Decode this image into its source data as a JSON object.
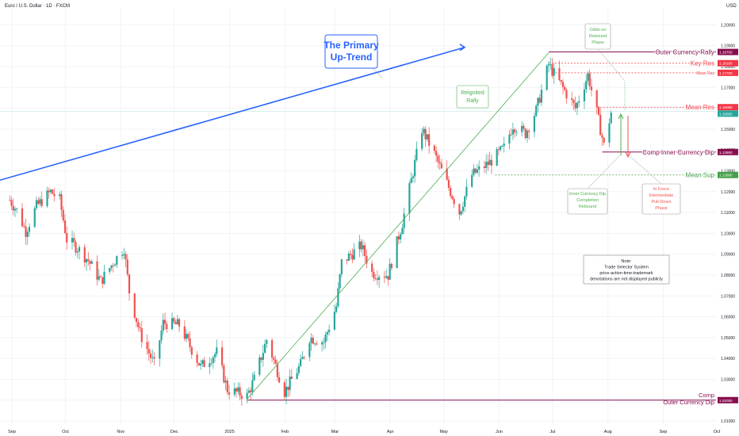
{
  "header": {
    "symbol_title": "Euro / U.S. Dollar · 1D · FXCM",
    "currency": "USD"
  },
  "colors": {
    "up": "#26a69a",
    "down": "#ef5350",
    "trend_blue": "#2962ff",
    "purple": "#880e4f",
    "red_level": "#f23645",
    "green_level": "#43a047",
    "channel_green": "#4caf50"
  },
  "chart_data": {
    "type": "candlestick",
    "instrument": "Euro / U.S. Dollar",
    "timeframe": "1D",
    "y_axis": {
      "ticks": [
        "1.20000",
        "1.19000",
        "1.18000",
        "1.17000",
        "1.16000",
        "1.15000",
        "1.14000",
        "1.13000",
        "1.12000",
        "1.11000",
        "1.10000",
        "1.09000",
        "1.08000",
        "1.07000",
        "1.06000",
        "1.05000",
        "1.04000",
        "1.03000",
        "1.02000",
        "1.01000"
      ],
      "range": [
        1.0085,
        1.2085
      ]
    },
    "x_axis": {
      "labels": [
        "Sep",
        "Oct",
        "Nov",
        "Dec",
        "2025",
        "Feb",
        "Mar",
        "Apr",
        "May",
        "Jun",
        "Jul",
        "Aug",
        "Sep",
        "Oct"
      ]
    },
    "price_path": [
      [
        "2024-09-02",
        1.116
      ],
      [
        "2024-09-06",
        1.111
      ],
      [
        "2024-09-11",
        1.101
      ],
      [
        "2024-09-17",
        1.113
      ],
      [
        "2024-09-25",
        1.12
      ],
      [
        "2024-09-30",
        1.116
      ],
      [
        "2024-10-04",
        1.097
      ],
      [
        "2024-10-10",
        1.093
      ],
      [
        "2024-10-16",
        1.087
      ],
      [
        "2024-10-23",
        1.077
      ],
      [
        "2024-10-30",
        1.086
      ],
      [
        "2024-11-05",
        1.093
      ],
      [
        "2024-11-08",
        1.072
      ],
      [
        "2024-11-14",
        1.052
      ],
      [
        "2024-11-22",
        1.037
      ],
      [
        "2024-11-27",
        1.057
      ],
      [
        "2024-12-06",
        1.056
      ],
      [
        "2024-12-18",
        1.036
      ],
      [
        "2024-12-27",
        1.043
      ],
      [
        "2025-01-02",
        1.025
      ],
      [
        "2025-01-13",
        1.022
      ],
      [
        "2025-01-17",
        1.03
      ],
      [
        "2025-01-24",
        1.049
      ],
      [
        "2025-02-03",
        1.024
      ],
      [
        "2025-02-12",
        1.037
      ],
      [
        "2025-02-17",
        1.05
      ],
      [
        "2025-02-25",
        1.048
      ],
      [
        "2025-03-04",
        1.065
      ],
      [
        "2025-03-07",
        1.086
      ],
      [
        "2025-03-18",
        1.094
      ],
      [
        "2025-03-24",
        1.081
      ],
      [
        "2025-04-02",
        1.08
      ],
      [
        "2025-04-10",
        1.105
      ],
      [
        "2025-04-21",
        1.15
      ],
      [
        "2025-04-28",
        1.138
      ],
      [
        "2025-05-12",
        1.11
      ],
      [
        "2025-05-19",
        1.128
      ],
      [
        "2025-05-29",
        1.134
      ],
      [
        "2025-06-06",
        1.141
      ],
      [
        "2025-06-11",
        1.152
      ],
      [
        "2025-06-18",
        1.148
      ],
      [
        "2025-06-24",
        1.159
      ],
      [
        "2025-07-01",
        1.181
      ],
      [
        "2025-07-03",
        1.178
      ],
      [
        "2025-07-16",
        1.16
      ],
      [
        "2025-07-23",
        1.176
      ],
      [
        "2025-07-28",
        1.158
      ],
      [
        "2025-08-01",
        1.142
      ],
      [
        "2025-08-05",
        1.158
      ]
    ],
    "levels": [
      {
        "label": "Outer Currency Rally",
        "price_tag": "1.18700",
        "value": 1.187,
        "color": "purple"
      },
      {
        "label": "Key Res",
        "price_tag": "1.18160",
        "value": 1.1816,
        "color": "red"
      },
      {
        "label": "Mean Res",
        "price_tag": "1.17700",
        "value": 1.177,
        "color": "red"
      },
      {
        "label": "Mean Res",
        "price_tag": "1.16050",
        "value": 1.1605,
        "color": "red"
      },
      {
        "label": "",
        "price_tag": "1.15855",
        "value": 1.15855,
        "color": "current"
      },
      {
        "label": "Comp Inner Currency Dip",
        "price_tag": "1.13900",
        "value": 1.139,
        "color": "purple"
      },
      {
        "label": "Mean Sup",
        "price_tag": "1.12800",
        "value": 1.128,
        "color": "green"
      },
      {
        "label": "Comp\nOuter Currency Dip",
        "price_tag": "1.02000",
        "value": 1.02,
        "color": "purple"
      }
    ],
    "annotations": {
      "primary_trend": "The Primary Up-Trend",
      "reignited_rally": "Reignited Rally",
      "odds_on_rebound": "Odds-on Rebound Phase",
      "inner_dip_rebound": "Inner Currency Dip Completion Rebound",
      "in_force_pulldown": "In Force Intermediate Pull-Down Phase",
      "note": "Note:\nTrade Selector System\nprice-action-time-trademark\ndenotations are not displayed publicly"
    }
  }
}
